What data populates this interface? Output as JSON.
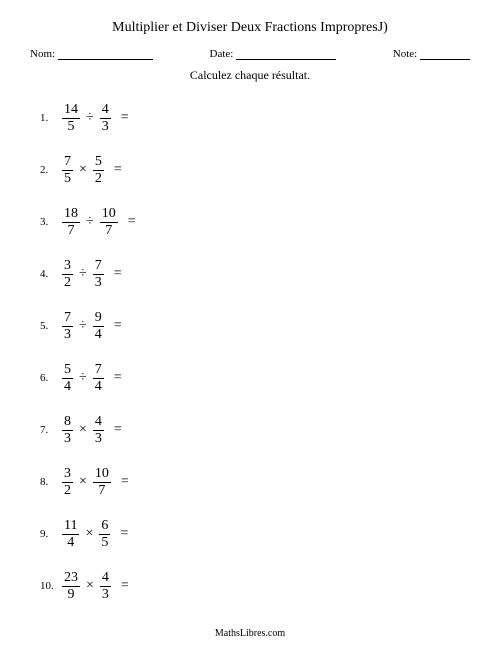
{
  "title": "Multiplier et Diviser Deux Fractions ImpropresJ)",
  "header": {
    "name_label": "Nom:",
    "date_label": "Date:",
    "note_label": "Note:"
  },
  "instruction": "Calculez chaque résultat.",
  "equals_symbol": "=",
  "operators": {
    "multiply": "×",
    "divide": "÷"
  },
  "problems": [
    {
      "index": "1.",
      "n1": "14",
      "d1": "5",
      "op": "÷",
      "n2": "4",
      "d2": "3"
    },
    {
      "index": "2.",
      "n1": "7",
      "d1": "5",
      "op": "×",
      "n2": "5",
      "d2": "2"
    },
    {
      "index": "3.",
      "n1": "18",
      "d1": "7",
      "op": "÷",
      "n2": "10",
      "d2": "7"
    },
    {
      "index": "4.",
      "n1": "3",
      "d1": "2",
      "op": "÷",
      "n2": "7",
      "d2": "3"
    },
    {
      "index": "5.",
      "n1": "7",
      "d1": "3",
      "op": "÷",
      "n2": "9",
      "d2": "4"
    },
    {
      "index": "6.",
      "n1": "5",
      "d1": "4",
      "op": "÷",
      "n2": "7",
      "d2": "4"
    },
    {
      "index": "7.",
      "n1": "8",
      "d1": "3",
      "op": "×",
      "n2": "4",
      "d2": "3"
    },
    {
      "index": "8.",
      "n1": "3",
      "d1": "2",
      "op": "×",
      "n2": "10",
      "d2": "7"
    },
    {
      "index": "9.",
      "n1": "11",
      "d1": "4",
      "op": "×",
      "n2": "6",
      "d2": "5"
    },
    {
      "index": "10.",
      "n1": "23",
      "d1": "9",
      "op": "×",
      "n2": "4",
      "d2": "3"
    }
  ],
  "footer": "MathsLibres.com"
}
